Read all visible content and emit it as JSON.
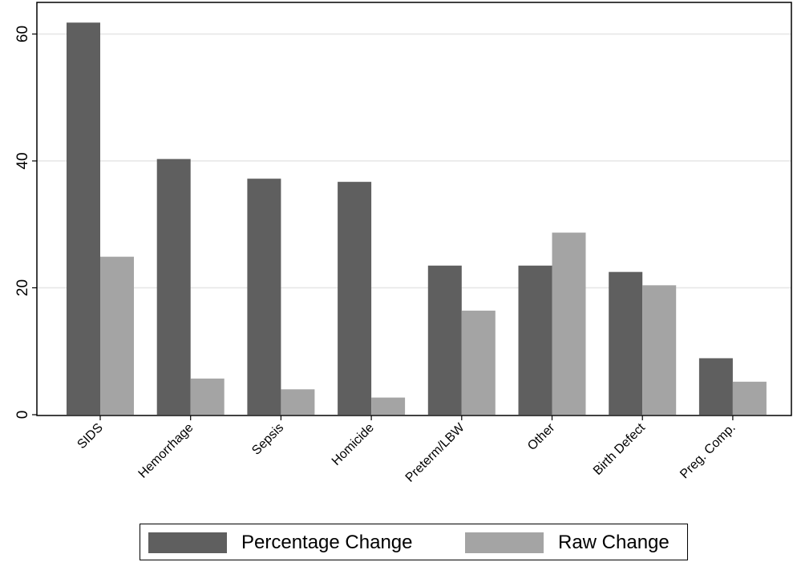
{
  "chart_data": {
    "type": "bar",
    "categories": [
      "SIDS",
      "Hemorrhage",
      "Sepsis",
      "Homicide",
      "Preterm/LBW",
      "Other",
      "Birth Defect",
      "Preg. Comp."
    ],
    "series": [
      {
        "name": "Percentage Change",
        "values": [
          61.8,
          40.3,
          37.2,
          36.7,
          23.5,
          23.5,
          22.5,
          8.9
        ],
        "color": "#5f5f5f"
      },
      {
        "name": "Raw Change",
        "values": [
          24.9,
          5.7,
          4.0,
          2.7,
          16.4,
          28.7,
          20.4,
          5.2
        ],
        "color": "#a4a4a4"
      }
    ],
    "title": "",
    "xlabel": "",
    "ylabel": "",
    "ylim": [
      0,
      65
    ],
    "yticks": [
      0,
      20,
      40,
      60
    ],
    "grid": true,
    "legend_position": "bottom"
  }
}
